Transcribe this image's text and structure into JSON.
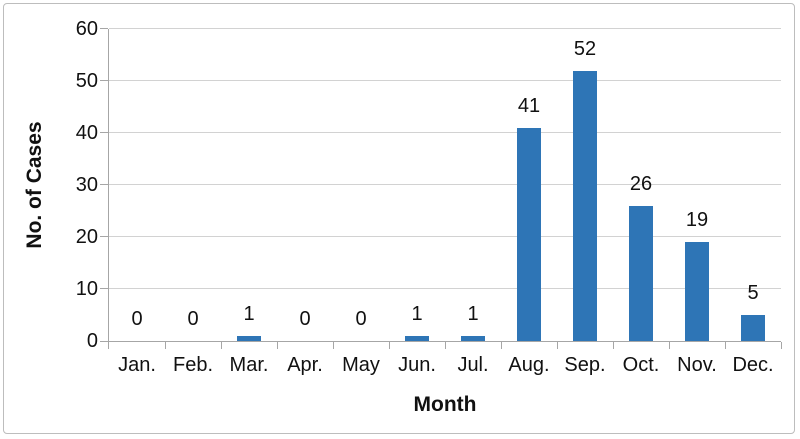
{
  "figure": {
    "background": "#ffffff",
    "frame_border_color": "#bdbdbd"
  },
  "chart_data": {
    "type": "bar",
    "title": "",
    "categories": [
      "Jan.",
      "Feb.",
      "Mar.",
      "Apr.",
      "May",
      "Jun.",
      "Jul.",
      "Aug.",
      "Sep.",
      "Oct.",
      "Nov.",
      "Dec."
    ],
    "values": [
      0,
      0,
      1,
      0,
      0,
      1,
      1,
      41,
      52,
      26,
      19,
      5
    ],
    "data_labels": [
      "0",
      "0",
      "1",
      "0",
      "0",
      "1",
      "1",
      "41",
      "52",
      "26",
      "19",
      "5"
    ],
    "xlabel": "Month",
    "ylabel": "No. of Cases",
    "ylim": [
      0,
      60
    ],
    "yticks": [
      0,
      10,
      20,
      30,
      40,
      50,
      60
    ],
    "ytick_labels": [
      "0",
      "10",
      "20",
      "30",
      "40",
      "50",
      "60"
    ],
    "grid": true,
    "legend": "none",
    "colors": {
      "bar": "#2E75B6",
      "gridline": "#D2D2D2",
      "axis": "#A6A6A6",
      "text": "#111111"
    }
  }
}
